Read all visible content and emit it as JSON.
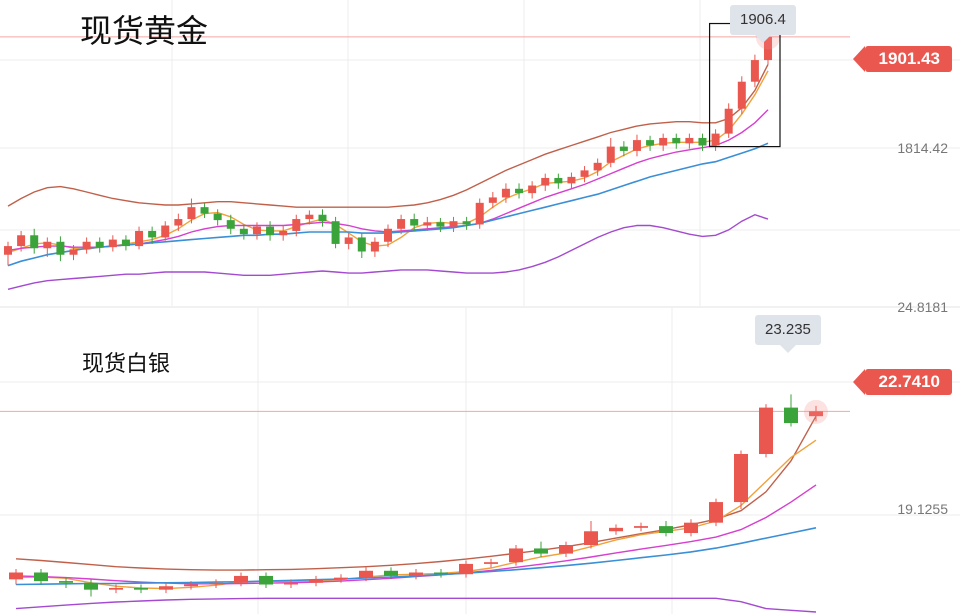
{
  "colors": {
    "up": "#e9574f",
    "down": "#3aa33a",
    "boll_upper": "#c0604a",
    "ma_short": "#f0a23a",
    "ma_mid": "#d63fcf",
    "ma_long": "#3a8fd6",
    "boll_lower": "#a34ad0",
    "price_line": "#f3a7a2"
  },
  "chart_data": [
    {
      "type": "candlestick",
      "title": "现货黄金",
      "high_label": "1906.4",
      "current_price": "1901.43",
      "axis_label": "1814.42",
      "ylim": [
        1660,
        1930
      ],
      "candles": [
        [
          1700,
          1708,
          1690,
          1712
        ],
        [
          1708,
          1718,
          1703,
          1722
        ],
        [
          1718,
          1706,
          1701,
          1724
        ],
        [
          1706,
          1712,
          1698,
          1716
        ],
        [
          1712,
          1700,
          1694,
          1717
        ],
        [
          1700,
          1705,
          1695,
          1709
        ],
        [
          1705,
          1712,
          1701,
          1716
        ],
        [
          1712,
          1707,
          1702,
          1716
        ],
        [
          1707,
          1714,
          1703,
          1718
        ],
        [
          1714,
          1708,
          1704,
          1718
        ],
        [
          1708,
          1722,
          1705,
          1726
        ],
        [
          1722,
          1716,
          1710,
          1726
        ],
        [
          1716,
          1727,
          1713,
          1731
        ],
        [
          1727,
          1733,
          1722,
          1738
        ],
        [
          1733,
          1744,
          1729,
          1752
        ],
        [
          1744,
          1738,
          1734,
          1748
        ],
        [
          1738,
          1732,
          1727,
          1742
        ],
        [
          1732,
          1724,
          1719,
          1737
        ],
        [
          1724,
          1719,
          1714,
          1728
        ],
        [
          1719,
          1726,
          1714,
          1730
        ],
        [
          1726,
          1718,
          1713,
          1731
        ],
        [
          1718,
          1722,
          1713,
          1727
        ],
        [
          1722,
          1733,
          1717,
          1737
        ],
        [
          1733,
          1737,
          1728,
          1741
        ],
        [
          1737,
          1731,
          1726,
          1742
        ],
        [
          1731,
          1710,
          1706,
          1735
        ],
        [
          1710,
          1716,
          1705,
          1720
        ],
        [
          1716,
          1703,
          1697,
          1720
        ],
        [
          1703,
          1712,
          1698,
          1716
        ],
        [
          1712,
          1724,
          1707,
          1728
        ],
        [
          1724,
          1733,
          1719,
          1737
        ],
        [
          1733,
          1727,
          1722,
          1738
        ],
        [
          1727,
          1730,
          1722,
          1735
        ],
        [
          1730,
          1726,
          1721,
          1734
        ],
        [
          1726,
          1731,
          1721,
          1735
        ],
        [
          1731,
          1728,
          1723,
          1735
        ],
        [
          1728,
          1748,
          1724,
          1752
        ],
        [
          1748,
          1753,
          1743,
          1758
        ],
        [
          1753,
          1761,
          1748,
          1766
        ],
        [
          1761,
          1757,
          1752,
          1766
        ],
        [
          1757,
          1764,
          1752,
          1768
        ],
        [
          1764,
          1771,
          1759,
          1775
        ],
        [
          1771,
          1766,
          1761,
          1775
        ],
        [
          1766,
          1772,
          1761,
          1776
        ],
        [
          1772,
          1778,
          1767,
          1782
        ],
        [
          1778,
          1785,
          1773,
          1789
        ],
        [
          1785,
          1800,
          1781,
          1808
        ],
        [
          1800,
          1796,
          1791,
          1805
        ],
        [
          1796,
          1806,
          1791,
          1811
        ],
        [
          1806,
          1801,
          1796,
          1810
        ],
        [
          1801,
          1808,
          1796,
          1812
        ],
        [
          1808,
          1803,
          1798,
          1812
        ],
        [
          1803,
          1808,
          1798,
          1812
        ],
        [
          1808,
          1801,
          1796,
          1812
        ],
        [
          1801,
          1812,
          1796,
          1816
        ],
        [
          1812,
          1835,
          1808,
          1840
        ],
        [
          1835,
          1860,
          1830,
          1865
        ],
        [
          1860,
          1880,
          1855,
          1885
        ],
        [
          1880,
          1901.43,
          1876,
          1906.4
        ]
      ],
      "bands": {
        "upper": [
          1745,
          1752,
          1758,
          1762,
          1763,
          1761,
          1758,
          1755,
          1752,
          1750,
          1748,
          1747,
          1746,
          1746,
          1747,
          1748,
          1749,
          1749,
          1748,
          1747,
          1746,
          1745,
          1744,
          1744,
          1744,
          1744,
          1744,
          1744,
          1744,
          1744,
          1745,
          1746,
          1748,
          1751,
          1755,
          1760,
          1766,
          1772,
          1778,
          1783,
          1788,
          1793,
          1797,
          1801,
          1805,
          1809,
          1813,
          1816,
          1819,
          1821,
          1822,
          1823,
          1823,
          1822,
          1822,
          1826,
          1836,
          1852,
          1876
        ],
        "ma_short": [
          1702,
          1706,
          1710,
          1711,
          1709,
          1706,
          1705,
          1707,
          1708,
          1710,
          1712,
          1714,
          1718,
          1724,
          1732,
          1738,
          1739,
          1735,
          1728,
          1723,
          1722,
          1722,
          1726,
          1730,
          1733,
          1728,
          1720,
          1712,
          1708,
          1709,
          1716,
          1725,
          1729,
          1730,
          1729,
          1729,
          1735,
          1744,
          1752,
          1757,
          1761,
          1766,
          1767,
          1768,
          1771,
          1777,
          1786,
          1792,
          1798,
          1801,
          1803,
          1804,
          1804,
          1804,
          1806,
          1815,
          1830,
          1848,
          1870
        ],
        "ma_mid": [
          1704,
          1706,
          1707,
          1708,
          1708,
          1707,
          1707,
          1707,
          1708,
          1709,
          1710,
          1712,
          1714,
          1717,
          1721,
          1724,
          1726,
          1727,
          1727,
          1727,
          1727,
          1727,
          1728,
          1729,
          1730,
          1729,
          1727,
          1724,
          1722,
          1721,
          1722,
          1723,
          1724,
          1725,
          1726,
          1727,
          1729,
          1733,
          1738,
          1743,
          1748,
          1753,
          1757,
          1761,
          1765,
          1770,
          1775,
          1780,
          1785,
          1789,
          1792,
          1795,
          1797,
          1799,
          1801,
          1806,
          1813,
          1822,
          1834
        ],
        "ma_long": [
          1690,
          1694,
          1697,
          1700,
          1702,
          1704,
          1706,
          1707,
          1708,
          1709,
          1710,
          1711,
          1712,
          1713,
          1714,
          1715,
          1716,
          1717,
          1718,
          1718,
          1719,
          1719,
          1720,
          1721,
          1721,
          1721,
          1721,
          1720,
          1720,
          1720,
          1721,
          1722,
          1723,
          1724,
          1725,
          1727,
          1729,
          1732,
          1735,
          1738,
          1741,
          1744,
          1747,
          1750,
          1753,
          1756,
          1760,
          1764,
          1768,
          1772,
          1775,
          1778,
          1781,
          1784,
          1786,
          1790,
          1794,
          1798,
          1803
        ],
        "lower": [
          1668,
          1671,
          1674,
          1676,
          1677,
          1678,
          1679,
          1680,
          1681,
          1682,
          1682,
          1683,
          1684,
          1684,
          1684,
          1684,
          1683,
          1682,
          1681,
          1681,
          1681,
          1682,
          1683,
          1684,
          1685,
          1684,
          1683,
          1683,
          1684,
          1685,
          1686,
          1686,
          1686,
          1685,
          1684,
          1683,
          1683,
          1683,
          1684,
          1686,
          1689,
          1693,
          1698,
          1704,
          1710,
          1716,
          1721,
          1725,
          1727,
          1727,
          1725,
          1722,
          1719,
          1717,
          1718,
          1723,
          1731,
          1737,
          1733
        ]
      }
    },
    {
      "type": "candlestick",
      "title": "现货白银",
      "high_label": "23.235",
      "current_price": "22.7410",
      "axis_label": "19.1255",
      "axis_label_top": "24.8181",
      "ylim": [
        16.9,
        25.4
      ],
      "candles": [
        [
          17.85,
          18.05,
          17.7,
          18.15
        ],
        [
          18.05,
          17.8,
          17.7,
          18.15
        ],
        [
          17.8,
          17.75,
          17.6,
          17.9
        ],
        [
          17.75,
          17.55,
          17.35,
          17.85
        ],
        [
          17.55,
          17.6,
          17.45,
          17.7
        ],
        [
          17.6,
          17.55,
          17.45,
          17.7
        ],
        [
          17.55,
          17.65,
          17.45,
          17.75
        ],
        [
          17.65,
          17.7,
          17.55,
          17.8
        ],
        [
          17.7,
          17.75,
          17.6,
          17.85
        ],
        [
          17.75,
          17.95,
          17.65,
          18.05
        ],
        [
          17.95,
          17.7,
          17.6,
          18.05
        ],
        [
          17.7,
          17.75,
          17.6,
          17.85
        ],
        [
          17.75,
          17.85,
          17.65,
          17.95
        ],
        [
          17.85,
          17.9,
          17.75,
          18.0
        ],
        [
          17.9,
          18.1,
          17.8,
          18.2
        ],
        [
          18.1,
          17.95,
          17.85,
          18.2
        ],
        [
          17.95,
          18.05,
          17.85,
          18.15
        ],
        [
          18.05,
          18.0,
          17.9,
          18.15
        ],
        [
          18.0,
          18.3,
          17.9,
          18.4
        ],
        [
          18.3,
          18.35,
          18.2,
          18.45
        ],
        [
          18.35,
          18.75,
          18.25,
          18.85
        ],
        [
          18.75,
          18.6,
          18.5,
          18.95
        ],
        [
          18.6,
          18.85,
          18.5,
          18.95
        ],
        [
          18.85,
          19.25,
          18.75,
          19.55
        ],
        [
          19.25,
          19.35,
          19.15,
          19.45
        ],
        [
          19.35,
          19.4,
          19.25,
          19.5
        ],
        [
          19.4,
          19.2,
          19.1,
          19.55
        ],
        [
          19.2,
          19.5,
          19.1,
          19.6
        ],
        [
          19.5,
          20.1,
          19.4,
          20.2
        ],
        [
          20.1,
          21.5,
          19.9,
          21.6
        ],
        [
          21.5,
          22.85,
          21.4,
          22.95
        ],
        [
          22.85,
          22.4,
          22.3,
          23.235
        ],
        [
          22.6,
          22.741,
          22.45,
          22.9
        ]
      ],
      "bands": {
        "upper": [
          18.45,
          18.4,
          18.34,
          18.28,
          18.22,
          18.18,
          18.15,
          18.13,
          18.12,
          18.12,
          18.13,
          18.14,
          18.16,
          18.19,
          18.22,
          18.26,
          18.31,
          18.37,
          18.44,
          18.52,
          18.61,
          18.7,
          18.8,
          18.92,
          19.05,
          19.18,
          19.3,
          19.44,
          19.6,
          19.85,
          20.4,
          21.3,
          22.6
        ],
        "ma_short": [
          17.9,
          17.92,
          17.88,
          17.75,
          17.65,
          17.6,
          17.58,
          17.62,
          17.68,
          17.78,
          17.8,
          17.78,
          17.8,
          17.84,
          17.92,
          17.98,
          18.0,
          18.02,
          18.08,
          18.18,
          18.35,
          18.5,
          18.62,
          18.8,
          19.0,
          19.15,
          19.25,
          19.35,
          19.55,
          20.0,
          20.7,
          21.4,
          21.9
        ],
        "ma_mid": [
          17.95,
          17.93,
          17.9,
          17.86,
          17.81,
          17.77,
          17.74,
          17.72,
          17.72,
          17.73,
          17.74,
          17.75,
          17.77,
          17.8,
          17.84,
          17.88,
          17.93,
          17.98,
          18.04,
          18.11,
          18.2,
          18.29,
          18.39,
          18.5,
          18.62,
          18.73,
          18.84,
          18.95,
          19.08,
          19.3,
          19.65,
          20.1,
          20.6
        ],
        "ma_long": [
          17.7,
          17.71,
          17.72,
          17.73,
          17.73,
          17.74,
          17.75,
          17.76,
          17.77,
          17.78,
          17.8,
          17.82,
          17.84,
          17.86,
          17.89,
          17.92,
          17.95,
          17.99,
          18.03,
          18.08,
          18.13,
          18.19,
          18.25,
          18.32,
          18.4,
          18.48,
          18.56,
          18.65,
          18.76,
          18.9,
          19.05,
          19.2,
          19.35
        ],
        "lower": [
          17.0,
          17.05,
          17.1,
          17.15,
          17.19,
          17.22,
          17.25,
          17.27,
          17.28,
          17.29,
          17.3,
          17.3,
          17.3,
          17.3,
          17.3,
          17.3,
          17.3,
          17.3,
          17.3,
          17.3,
          17.3,
          17.3,
          17.3,
          17.3,
          17.3,
          17.3,
          17.3,
          17.3,
          17.3,
          17.2,
          17.0,
          16.95,
          16.9
        ]
      }
    }
  ]
}
